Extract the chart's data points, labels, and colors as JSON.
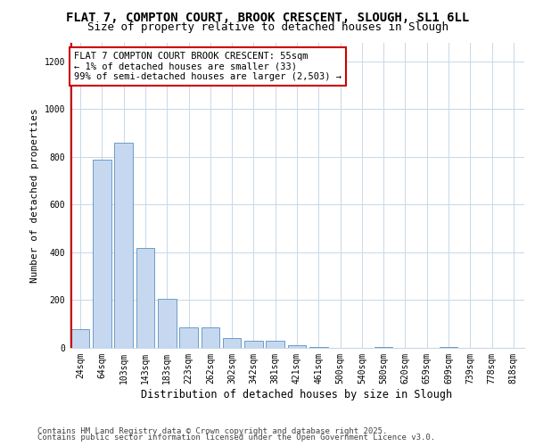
{
  "title1": "FLAT 7, COMPTON COURT, BROOK CRESCENT, SLOUGH, SL1 6LL",
  "title2": "Size of property relative to detached houses in Slough",
  "xlabel": "Distribution of detached houses by size in Slough",
  "ylabel": "Number of detached properties",
  "categories": [
    "24sqm",
    "64sqm",
    "103sqm",
    "143sqm",
    "183sqm",
    "223sqm",
    "262sqm",
    "302sqm",
    "342sqm",
    "381sqm",
    "421sqm",
    "461sqm",
    "500sqm",
    "540sqm",
    "580sqm",
    "620sqm",
    "659sqm",
    "699sqm",
    "739sqm",
    "778sqm",
    "818sqm"
  ],
  "values": [
    80,
    790,
    860,
    420,
    205,
    85,
    85,
    40,
    30,
    30,
    10,
    2,
    0,
    0,
    5,
    0,
    0,
    5,
    0,
    0,
    0
  ],
  "bar_color": "#c5d8f0",
  "bar_edge_color": "#5a8fc0",
  "annotation_line1": "FLAT 7 COMPTON COURT BROOK CRESCENT: 55sqm",
  "annotation_line2": "← 1% of detached houses are smaller (33)",
  "annotation_line3": "99% of semi-detached houses are larger (2,503) →",
  "annotation_box_color": "#ffffff",
  "annotation_box_edge_color": "#cc0000",
  "vline_color": "#cc0000",
  "ylim": [
    0,
    1280
  ],
  "yticks": [
    0,
    200,
    400,
    600,
    800,
    1000,
    1200
  ],
  "background_color": "#ffffff",
  "grid_color": "#c8d8e8",
  "footer1": "Contains HM Land Registry data © Crown copyright and database right 2025.",
  "footer2": "Contains public sector information licensed under the Open Government Licence v3.0.",
  "title1_fontsize": 10,
  "title2_fontsize": 9,
  "xlabel_fontsize": 8.5,
  "ylabel_fontsize": 8,
  "tick_fontsize": 7,
  "annotation_fontsize": 7.5,
  "footer_fontsize": 6.5
}
